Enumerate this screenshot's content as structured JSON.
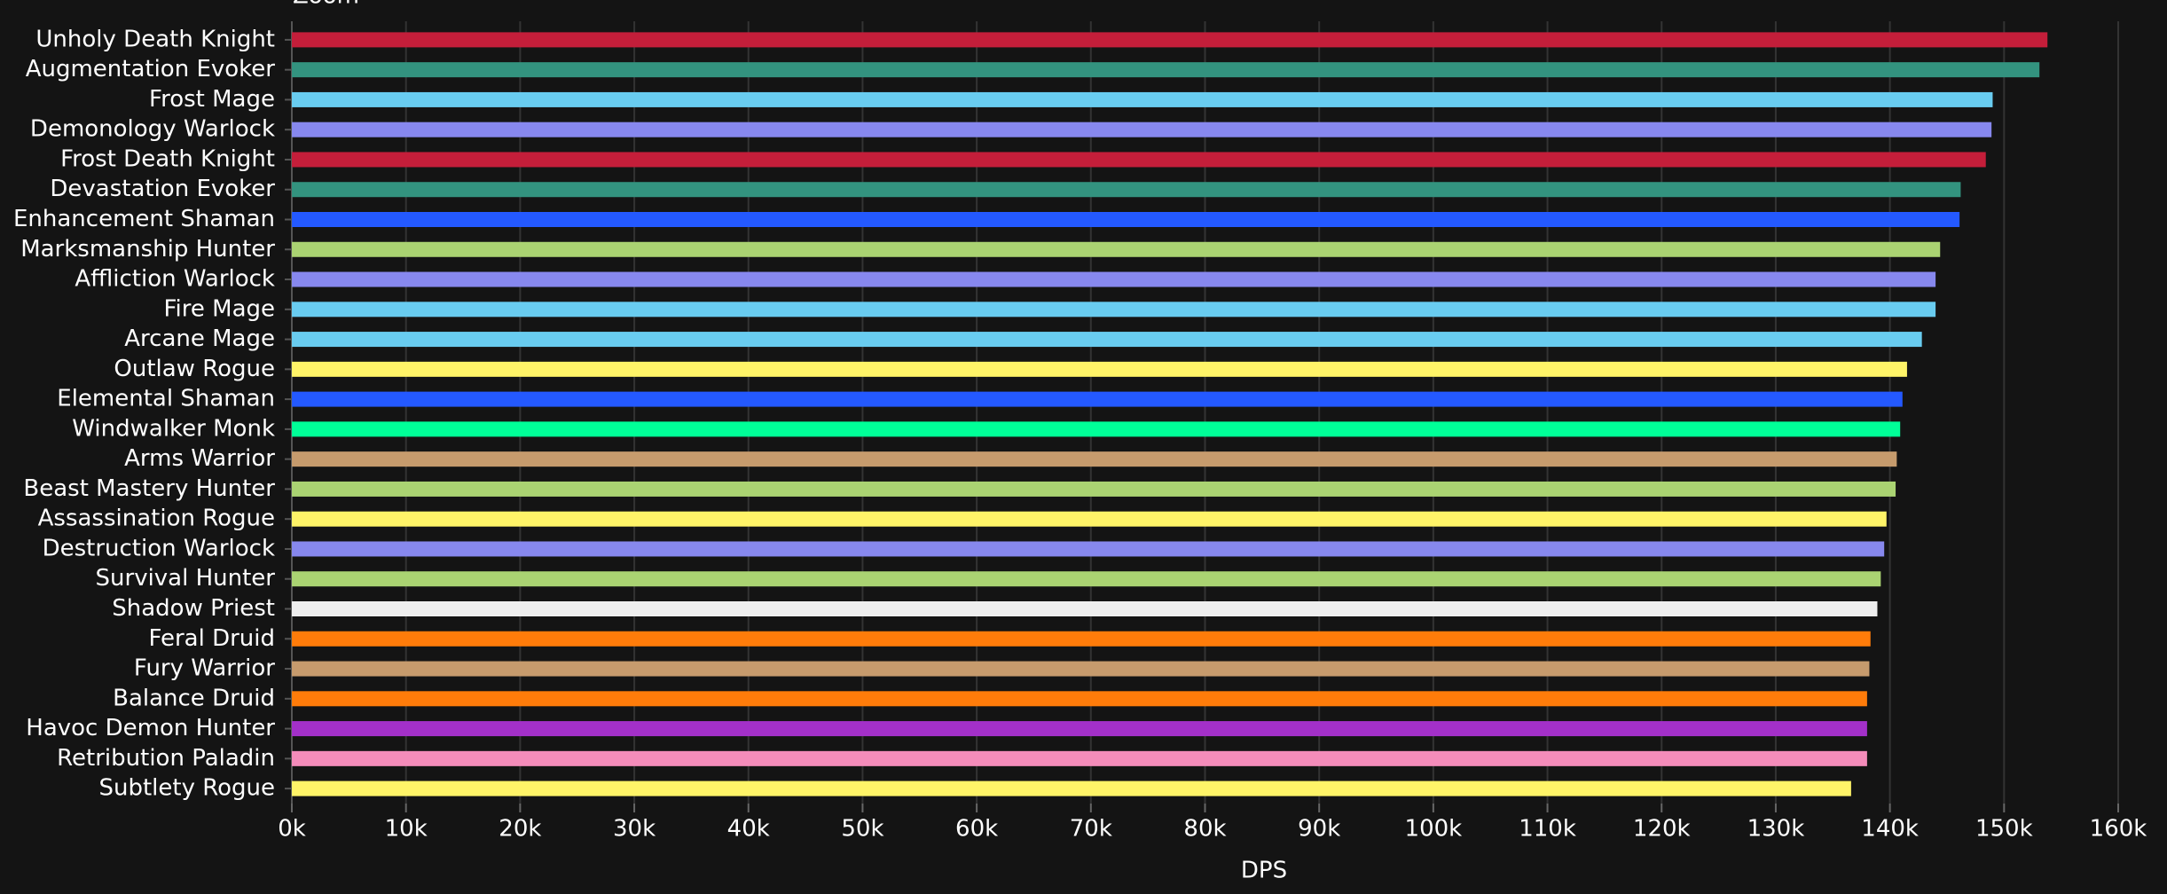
{
  "chart_data": {
    "type": "barh",
    "header": "Zoom",
    "x_label": "DPS",
    "categories": [
      "Unholy Death Knight",
      "Augmentation Evoker",
      "Frost Mage",
      "Demonology Warlock",
      "Frost Death Knight",
      "Devastation Evoker",
      "Enhancement Shaman",
      "Marksmanship Hunter",
      "Affliction Warlock",
      "Fire Mage",
      "Arcane Mage",
      "Outlaw Rogue",
      "Elemental Shaman",
      "Windwalker Monk",
      "Arms Warrior",
      "Beast Mastery Hunter",
      "Assassination Rogue",
      "Destruction Warlock",
      "Survival Hunter",
      "Shadow Priest",
      "Feral Druid",
      "Fury Warrior",
      "Balance Druid",
      "Havoc Demon Hunter",
      "Retribution Paladin",
      "Subtlety Rogue"
    ],
    "values": [
      153800,
      153100,
      149000,
      148900,
      148400,
      146200,
      146100,
      144400,
      144000,
      144000,
      142800,
      141500,
      141100,
      140900,
      140600,
      140500,
      139700,
      139500,
      139200,
      138900,
      138300,
      138200,
      138000,
      138000,
      138000,
      136600
    ],
    "colors": [
      "#c41e3a",
      "#33937f",
      "#69ccf0",
      "#8788ee",
      "#c41e3a",
      "#33937f",
      "#2459ff",
      "#aad372",
      "#8788ee",
      "#69ccf0",
      "#69ccf0",
      "#fff468",
      "#2459ff",
      "#00ff98",
      "#c69b6d",
      "#aad372",
      "#fff468",
      "#8788ee",
      "#aad372",
      "#eeeeee",
      "#ff7c0a",
      "#c69b6d",
      "#ff7c0a",
      "#a330c9",
      "#f48cba",
      "#fff468"
    ],
    "xlim": [
      0,
      160000
    ],
    "xticks": [
      {
        "value": 0,
        "label": "0k"
      },
      {
        "value": 10000,
        "label": "10k"
      },
      {
        "value": 20000,
        "label": "20k"
      },
      {
        "value": 30000,
        "label": "30k"
      },
      {
        "value": 40000,
        "label": "40k"
      },
      {
        "value": 50000,
        "label": "50k"
      },
      {
        "value": 60000,
        "label": "60k"
      },
      {
        "value": 70000,
        "label": "70k"
      },
      {
        "value": 80000,
        "label": "80k"
      },
      {
        "value": 90000,
        "label": "90k"
      },
      {
        "value": 100000,
        "label": "100k"
      },
      {
        "value": 110000,
        "label": "110k"
      },
      {
        "value": 120000,
        "label": "120k"
      },
      {
        "value": 130000,
        "label": "130k"
      },
      {
        "value": 140000,
        "label": "140k"
      },
      {
        "value": 150000,
        "label": "150k"
      },
      {
        "value": 160000,
        "label": "160k"
      }
    ],
    "grid": true
  }
}
